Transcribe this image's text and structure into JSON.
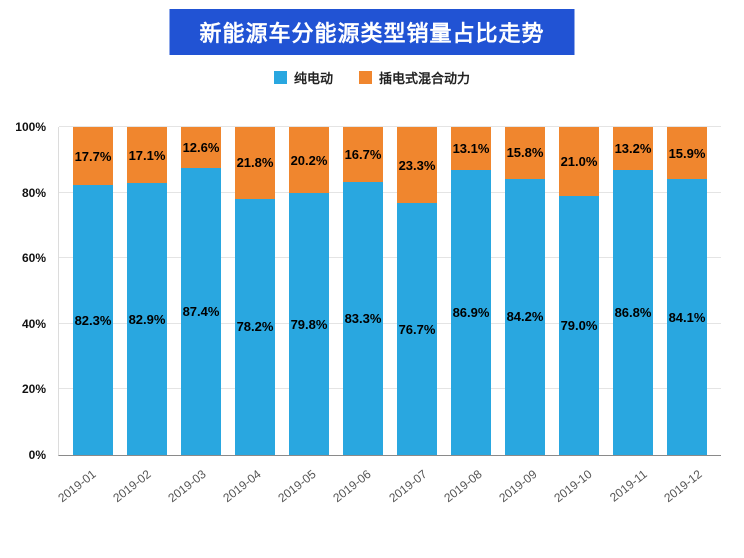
{
  "header": {
    "title": "新能源车分能源类型销量占比走势",
    "banner_color": "#2153d4"
  },
  "legend": {
    "items": [
      {
        "label": "纯电动",
        "color": "#29a7e0"
      },
      {
        "label": "插电式混合动力",
        "color": "#f0862e"
      }
    ]
  },
  "chart_data": {
    "type": "bar",
    "stacked": true,
    "percent_stacked": true,
    "title": "新能源车分能源类型销量占比走势",
    "categories": [
      "2019-01",
      "2019-02",
      "2019-03",
      "2019-04",
      "2019-05",
      "2019-06",
      "2019-07",
      "2019-08",
      "2019-09",
      "2019-10",
      "2019-11",
      "2019-12"
    ],
    "series": [
      {
        "name": "纯电动",
        "color": "#29a7e0",
        "values": [
          82.3,
          82.9,
          87.4,
          78.2,
          79.8,
          83.3,
          76.7,
          86.9,
          84.2,
          79.0,
          86.8,
          84.1
        ]
      },
      {
        "name": "插电式混合动力",
        "color": "#f0862e",
        "values": [
          17.7,
          17.1,
          12.6,
          21.8,
          20.2,
          16.7,
          23.3,
          13.1,
          15.8,
          21.0,
          13.2,
          15.9
        ]
      }
    ],
    "xlabel": "",
    "ylabel": "",
    "ylim": [
      0,
      100
    ],
    "y_ticks": [
      "0%",
      "20%",
      "40%",
      "60%",
      "80%",
      "100%"
    ],
    "grid": true,
    "legend_position": "top",
    "data_label_suffix": "%"
  }
}
